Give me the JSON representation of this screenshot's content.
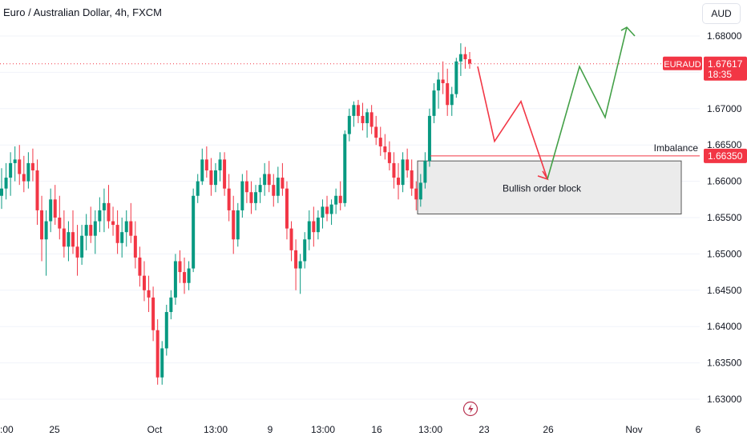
{
  "header": {
    "title": "Euro / Australian Dollar, 4h, FXCM",
    "currency": "AUD"
  },
  "price_tag": {
    "symbol": "EURAUD",
    "price": "1.67617",
    "countdown": "18:35"
  },
  "colors": {
    "bull": "#089981",
    "bear": "#f23645",
    "projection_down": "#f23645",
    "projection_up": "#43a047",
    "box_fill": "#ebebeb",
    "text": "#131722"
  },
  "icons": {
    "lightning": "lightning-icon"
  },
  "chart_data": {
    "type": "candlestick",
    "y_axis": {
      "ticks": [
        "1.68000",
        "1.67500",
        "1.67000",
        "1.66500",
        "1.66000",
        "1.65500",
        "1.65000",
        "1.64500",
        "1.64000",
        "1.63500",
        "1.63000"
      ],
      "range": [
        1.6275,
        1.6845
      ]
    },
    "x_axis": {
      "ticks": [
        ":00",
        "25",
        "Oct",
        "13:00",
        "9",
        "13:00",
        "16",
        "13:00",
        "23",
        "26",
        "Nov",
        "6"
      ]
    },
    "annotations": {
      "imbalance_label": "Imbalance",
      "imbalance_price": "1.66350",
      "order_block_label": "Bullish order block",
      "order_block_range": [
        1.6555,
        1.6628
      ]
    },
    "current_price": 1.67617,
    "projection_prices": [
      1.6758,
      1.6655,
      1.671,
      1.6603,
      1.6758,
      1.6688,
      1.6812,
      1.68
    ],
    "candles": [
      [
        1.658,
        1.6618,
        1.6562,
        1.659
      ],
      [
        1.659,
        1.6625,
        1.6575,
        1.6605
      ],
      [
        1.6605,
        1.664,
        1.658,
        1.6625
      ],
      [
        1.6625,
        1.6648,
        1.66,
        1.663
      ],
      [
        1.663,
        1.665,
        1.6595,
        1.661
      ],
      [
        1.661,
        1.6635,
        1.6585,
        1.66
      ],
      [
        1.66,
        1.664,
        1.659,
        1.6625
      ],
      [
        1.6625,
        1.6645,
        1.66,
        1.6615
      ],
      [
        1.6615,
        1.663,
        1.654,
        1.656
      ],
      [
        1.656,
        1.658,
        1.649,
        1.652
      ],
      [
        1.652,
        1.656,
        1.647,
        1.6545
      ],
      [
        1.6545,
        1.659,
        1.653,
        1.6575
      ],
      [
        1.6575,
        1.6595,
        1.654,
        1.655
      ],
      [
        1.655,
        1.658,
        1.652,
        1.6535
      ],
      [
        1.6535,
        1.656,
        1.6495,
        1.651
      ],
      [
        1.651,
        1.6545,
        1.649,
        1.653
      ],
      [
        1.653,
        1.656,
        1.65,
        1.651
      ],
      [
        1.651,
        1.654,
        1.647,
        1.6495
      ],
      [
        1.6495,
        1.654,
        1.6485,
        1.6525
      ],
      [
        1.6525,
        1.6555,
        1.6505,
        1.654
      ],
      [
        1.654,
        1.6565,
        1.6515,
        1.6525
      ],
      [
        1.6525,
        1.656,
        1.65,
        1.6545
      ],
      [
        1.6545,
        1.6578,
        1.653,
        1.656
      ],
      [
        1.656,
        1.659,
        1.653,
        1.657
      ],
      [
        1.657,
        1.6595,
        1.6535,
        1.6545
      ],
      [
        1.6545,
        1.6565,
        1.6525,
        1.654
      ],
      [
        1.654,
        1.656,
        1.65,
        1.6515
      ],
      [
        1.6515,
        1.655,
        1.6495,
        1.653
      ],
      [
        1.653,
        1.656,
        1.651,
        1.6545
      ],
      [
        1.6545,
        1.657,
        1.6515,
        1.6525
      ],
      [
        1.6525,
        1.6545,
        1.648,
        1.6495
      ],
      [
        1.6495,
        1.651,
        1.6455,
        1.647
      ],
      [
        1.647,
        1.649,
        1.6435,
        1.645
      ],
      [
        1.645,
        1.647,
        1.642,
        1.644
      ],
      [
        1.644,
        1.6455,
        1.638,
        1.6395
      ],
      [
        1.6395,
        1.641,
        1.632,
        1.633
      ],
      [
        1.633,
        1.638,
        1.632,
        1.637
      ],
      [
        1.637,
        1.643,
        1.636,
        1.642
      ],
      [
        1.642,
        1.645,
        1.641,
        1.644
      ],
      [
        1.644,
        1.65,
        1.643,
        1.649
      ],
      [
        1.649,
        1.6505,
        1.646,
        1.6475
      ],
      [
        1.6475,
        1.6495,
        1.6445,
        1.646
      ],
      [
        1.646,
        1.649,
        1.645,
        1.648
      ],
      [
        1.648,
        1.659,
        1.6475,
        1.658
      ],
      [
        1.658,
        1.661,
        1.657,
        1.66
      ],
      [
        1.66,
        1.6645,
        1.6595,
        1.663
      ],
      [
        1.663,
        1.6648,
        1.6605,
        1.6615
      ],
      [
        1.6615,
        1.6632,
        1.658,
        1.6595
      ],
      [
        1.6595,
        1.6625,
        1.6585,
        1.6615
      ],
      [
        1.6615,
        1.664,
        1.66,
        1.663
      ],
      [
        1.663,
        1.664,
        1.658,
        1.659
      ],
      [
        1.659,
        1.661,
        1.6545,
        1.656
      ],
      [
        1.656,
        1.658,
        1.65,
        1.652
      ],
      [
        1.652,
        1.657,
        1.651,
        1.656
      ],
      [
        1.656,
        1.661,
        1.655,
        1.66
      ],
      [
        1.66,
        1.6615,
        1.657,
        1.6585
      ],
      [
        1.6585,
        1.66,
        1.6555,
        1.657
      ],
      [
        1.657,
        1.6595,
        1.656,
        1.6585
      ],
      [
        1.6585,
        1.6605,
        1.657,
        1.6595
      ],
      [
        1.6595,
        1.6625,
        1.658,
        1.661
      ],
      [
        1.661,
        1.6628,
        1.6585,
        1.6595
      ],
      [
        1.6595,
        1.661,
        1.6565,
        1.658
      ],
      [
        1.658,
        1.662,
        1.657,
        1.6605
      ],
      [
        1.6605,
        1.6625,
        1.658,
        1.659
      ],
      [
        1.659,
        1.66,
        1.652,
        1.6535
      ],
      [
        1.6535,
        1.6545,
        1.649,
        1.6505
      ],
      [
        1.6505,
        1.652,
        1.645,
        1.648
      ],
      [
        1.648,
        1.65,
        1.6445,
        1.649
      ],
      [
        1.649,
        1.653,
        1.648,
        1.652
      ],
      [
        1.652,
        1.656,
        1.6505,
        1.6545
      ],
      [
        1.6545,
        1.6565,
        1.651,
        1.653
      ],
      [
        1.653,
        1.656,
        1.652,
        1.655
      ],
      [
        1.655,
        1.6575,
        1.6535,
        1.6565
      ],
      [
        1.6565,
        1.658,
        1.6545,
        1.6555
      ],
      [
        1.6555,
        1.6575,
        1.654,
        1.6568
      ],
      [
        1.6568,
        1.659,
        1.6555,
        1.658
      ],
      [
        1.658,
        1.66,
        1.656,
        1.657
      ],
      [
        1.657,
        1.667,
        1.6565,
        1.6665
      ],
      [
        1.6665,
        1.67,
        1.6655,
        1.669
      ],
      [
        1.669,
        1.671,
        1.6675,
        1.6705
      ],
      [
        1.6705,
        1.6712,
        1.668,
        1.669
      ],
      [
        1.669,
        1.6708,
        1.667,
        1.668
      ],
      [
        1.668,
        1.67,
        1.666,
        1.6695
      ],
      [
        1.6695,
        1.6705,
        1.6665,
        1.6675
      ],
      [
        1.6675,
        1.669,
        1.665,
        1.666
      ],
      [
        1.666,
        1.6675,
        1.6635,
        1.6648
      ],
      [
        1.6648,
        1.6665,
        1.663,
        1.664
      ],
      [
        1.664,
        1.6655,
        1.6615,
        1.6625
      ],
      [
        1.6625,
        1.664,
        1.659,
        1.6605
      ],
      [
        1.6605,
        1.6625,
        1.6575,
        1.6595
      ],
      [
        1.6595,
        1.664,
        1.6585,
        1.663
      ],
      [
        1.663,
        1.6645,
        1.6605,
        1.6615
      ],
      [
        1.6615,
        1.663,
        1.658,
        1.659
      ],
      [
        1.659,
        1.66,
        1.656,
        1.6575
      ],
      [
        1.6575,
        1.661,
        1.6565,
        1.6598
      ],
      [
        1.6598,
        1.664,
        1.659,
        1.6628
      ],
      [
        1.6628,
        1.67,
        1.662,
        1.669
      ],
      [
        1.669,
        1.6735,
        1.668,
        1.6725
      ],
      [
        1.6725,
        1.675,
        1.67,
        1.674
      ],
      [
        1.674,
        1.6765,
        1.672,
        1.6735
      ],
      [
        1.6735,
        1.6755,
        1.669,
        1.6705
      ],
      [
        1.6705,
        1.673,
        1.669,
        1.672
      ],
      [
        1.672,
        1.677,
        1.6715,
        1.6765
      ],
      [
        1.6765,
        1.679,
        1.6745,
        1.6775
      ],
      [
        1.6775,
        1.6785,
        1.6755,
        1.6768
      ],
      [
        1.6768,
        1.6778,
        1.6755,
        1.6762
      ]
    ]
  }
}
